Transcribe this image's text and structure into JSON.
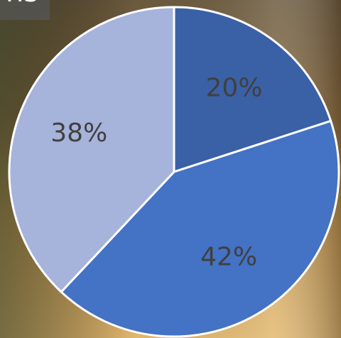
{
  "chart_data": {
    "type": "pie",
    "title": "ns",
    "values": [
      20,
      42,
      38
    ],
    "value_labels": [
      "20%",
      "42%",
      "38%"
    ],
    "colors": [
      "#3a60a6",
      "#4472c4",
      "#a6b3db"
    ]
  }
}
